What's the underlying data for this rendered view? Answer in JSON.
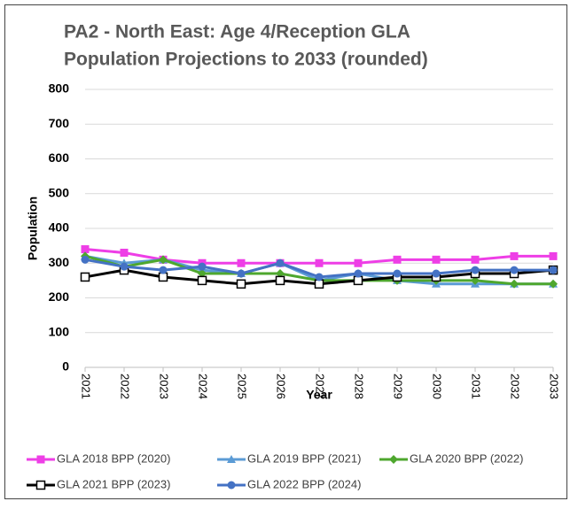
{
  "chart_data": {
    "type": "line",
    "title": [
      "PA2 - North East: Age 4/Reception GLA",
      "Population Projections to 2033 (rounded)"
    ],
    "x_label": "Year",
    "y_label": "Population",
    "categories": [
      "2021",
      "2022",
      "2023",
      "2024",
      "2025",
      "2026",
      "2027",
      "2028",
      "2029",
      "2030",
      "2031",
      "2032",
      "2033"
    ],
    "ylim": [
      0,
      800
    ],
    "yticks": [
      0,
      100,
      200,
      300,
      400,
      500,
      600,
      700,
      800
    ],
    "grid": true,
    "legend": "bottom",
    "series": [
      {
        "name": "GLA 2018 BPP (2020)",
        "color": "#ee3ee6",
        "marker": "square",
        "values": [
          340,
          330,
          310,
          300,
          300,
          300,
          300,
          300,
          310,
          310,
          310,
          320,
          320
        ]
      },
      {
        "name": "GLA 2019 BPP (2021)",
        "color": "#5b9bd5",
        "marker": "triangle",
        "values": [
          320,
          300,
          310,
          280,
          270,
          300,
          250,
          270,
          250,
          240,
          240,
          240,
          240
        ]
      },
      {
        "name": "GLA 2020 BPP (2022)",
        "color": "#4ea72e",
        "marker": "diamond",
        "values": [
          320,
          290,
          310,
          270,
          270,
          270,
          250,
          250,
          250,
          250,
          250,
          240,
          240
        ]
      },
      {
        "name": "GLA 2021 BPP (2023)",
        "color": "#000000",
        "marker": "open-square",
        "values": [
          260,
          280,
          260,
          250,
          240,
          250,
          240,
          250,
          260,
          260,
          270,
          270,
          280
        ]
      },
      {
        "name": "GLA 2022 BPP (2024)",
        "color": "#4472c4",
        "marker": "circle",
        "values": [
          310,
          290,
          280,
          290,
          270,
          300,
          260,
          270,
          270,
          270,
          280,
          280,
          280
        ]
      }
    ]
  }
}
